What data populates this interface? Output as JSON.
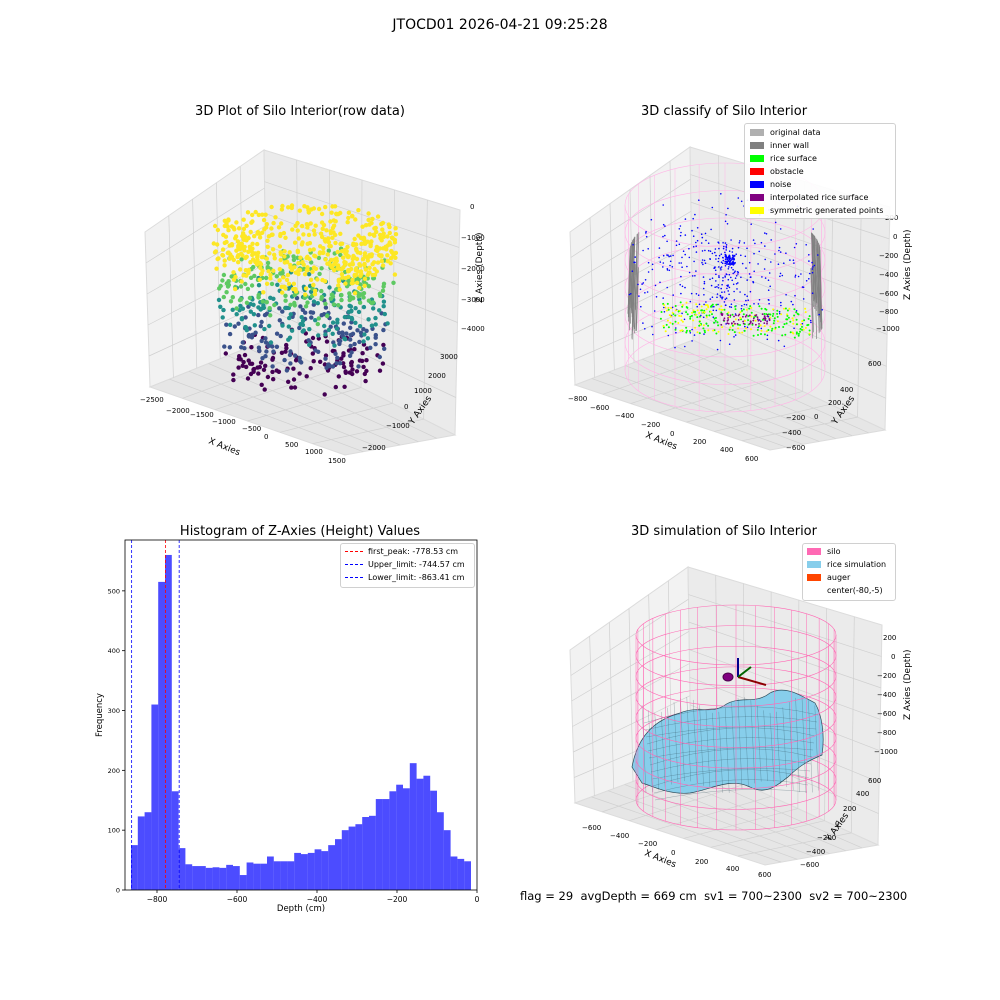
{
  "figure": {
    "suptitle": "JTOCD01 2026-04-21 09:25:28",
    "footer": {
      "flag": "flag = 29",
      "avg_depth": "avgDepth = 669 cm",
      "sv1": "sv1 = 700~2300",
      "sv2": "sv2 = 700~2300"
    }
  },
  "chart_data": [
    {
      "type": "scatter",
      "title": "3D Plot of Silo Interior(row data)",
      "xlabel": "X Axies",
      "ylabel": "Y Axies",
      "zlabel": "Z Axies (Depth)",
      "xticks": [
        "−2500",
        "−2000",
        "−1500",
        "−1000",
        "−500",
        "0",
        "500",
        "1000",
        "1500"
      ],
      "yticks": [
        "−2000",
        "−1000",
        "0",
        "1000",
        "2000",
        "3000"
      ],
      "zticks": [
        "0",
        "−1000",
        "−2000",
        "−3000",
        "−4000"
      ],
      "colormap": [
        "#440154",
        "#3b528b",
        "#21918c",
        "#5ec962",
        "#fde725"
      ]
    },
    {
      "type": "scatter",
      "title": "3D classify of Silo Interior",
      "xlabel": "X Axies",
      "ylabel": "Y Axies",
      "zlabel": "Z Axies (Depth)",
      "xticks": [
        "−800",
        "−600",
        "−400",
        "−200",
        "0",
        "200",
        "400",
        "600"
      ],
      "yticks": [
        "600",
        "400",
        "200",
        "0",
        "−200",
        "−400",
        "−600"
      ],
      "zticks": [
        "200",
        "0",
        "−200",
        "−400",
        "−600",
        "−800",
        "−1000"
      ],
      "legend_position": "top-right",
      "legend": [
        {
          "label": "original data",
          "color": "#b0b0b0"
        },
        {
          "label": "inner wall",
          "color": "#808080"
        },
        {
          "label": "rice surface",
          "color": "#00ff00"
        },
        {
          "label": "obstacle",
          "color": "#ff0000"
        },
        {
          "label": "noise",
          "color": "#0000ff"
        },
        {
          "label": "interpolated rice surface",
          "color": "#800080"
        },
        {
          "label": "symmetric generated points",
          "color": "#ffff00"
        }
      ]
    },
    {
      "type": "bar",
      "title": "Histogram of Z-Axies (Height) Values",
      "xlabel": "Depth (cm)",
      "ylabel": "Frequency",
      "xlim": [
        -880,
        0
      ],
      "ylim": [
        0,
        585
      ],
      "xticks": [
        -800,
        -600,
        -400,
        -200,
        0
      ],
      "xtick_labels": [
        "−800",
        "−600",
        "−400",
        "−200",
        "0"
      ],
      "yticks": [
        0,
        100,
        200,
        300,
        400,
        500
      ],
      "bar_color": "#0000ff",
      "bin_start": -865,
      "bin_width": 17,
      "values": [
        75,
        123,
        130,
        310,
        515,
        560,
        165,
        70,
        43,
        40,
        40,
        37,
        38,
        37,
        42,
        40,
        25,
        46,
        44,
        44,
        56,
        48,
        48,
        48,
        62,
        60,
        62,
        68,
        65,
        75,
        85,
        100,
        106,
        110,
        122,
        124,
        152,
        152,
        165,
        176,
        170,
        212,
        186,
        191,
        166,
        130,
        100,
        56,
        52,
        48
      ],
      "vlines": [
        {
          "x": -778.53,
          "color": "#ff0000",
          "label": "first_peak: -778.53 cm"
        },
        {
          "x": -744.57,
          "color": "#0000ff",
          "label": "Upper_limit: -744.57 cm"
        },
        {
          "x": -863.41,
          "color": "#0000ff",
          "label": "Lower_limit: -863.41 cm"
        }
      ],
      "legend_position": "top-right"
    },
    {
      "type": "area",
      "title": "3D simulation of Silo Interior",
      "xlabel": "X Axies",
      "ylabel": "Y Axies",
      "zlabel": "Z Axies (Depth)",
      "xticks": [
        "−600",
        "−400",
        "−200",
        "0",
        "200",
        "400",
        "600"
      ],
      "yticks": [
        "600",
        "400",
        "200",
        "0",
        "−200",
        "−400",
        "−600"
      ],
      "zticks": [
        "200",
        "0",
        "−200",
        "−400",
        "−600",
        "−800",
        "−1000"
      ],
      "legend_position": "top-right",
      "legend": [
        {
          "label": "silo",
          "color": "#ff69b4"
        },
        {
          "label": "rice simulation",
          "color": "#87ceeb"
        },
        {
          "label": "auger",
          "color": "#ff4500"
        },
        {
          "label": "center(-80,-5)",
          "color": ""
        }
      ]
    }
  ]
}
